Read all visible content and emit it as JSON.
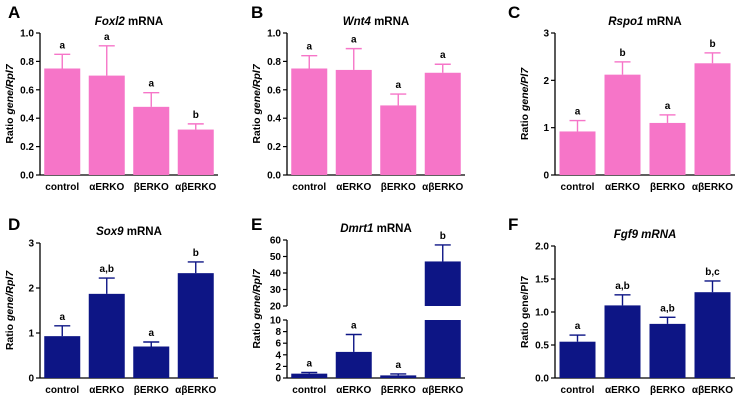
{
  "colors": {
    "pink": "#f675c8",
    "navy": "#0d1585",
    "axis": "#000000"
  },
  "categories": [
    "control",
    "αERKO",
    "βERKO",
    "αβERKO"
  ],
  "chart_data": [
    {
      "panel": "A",
      "type": "bar",
      "color": "pink",
      "gene": "Foxl2",
      "title_suffix": " mRNA",
      "ylabel_plain": "Ratio ",
      "ylabel_italic": "gene/Rpl7",
      "ylim": [
        0,
        1.0
      ],
      "yticks": [
        "0.0",
        "0.2",
        "0.4",
        "0.6",
        "0.8",
        "1.0"
      ],
      "categories": [
        "control",
        "αERKO",
        "βERKO",
        "αβERKO"
      ],
      "values": [
        0.75,
        0.7,
        0.48,
        0.32
      ],
      "errors": [
        0.1,
        0.21,
        0.1,
        0.04
      ],
      "sig_labels": [
        "a",
        "a",
        "a",
        "b"
      ]
    },
    {
      "panel": "B",
      "type": "bar",
      "color": "pink",
      "gene": "Wnt4",
      "title_suffix": " mRNA",
      "ylabel_plain": "Ratio ",
      "ylabel_italic": "gene/Rpl7",
      "ylim": [
        0,
        1.0
      ],
      "yticks": [
        "0.0",
        "0.2",
        "0.4",
        "0.6",
        "0.8",
        "1.0"
      ],
      "categories": [
        "control",
        "αERKO",
        "βERKO",
        "αβERKO"
      ],
      "values": [
        0.75,
        0.74,
        0.49,
        0.72
      ],
      "errors": [
        0.09,
        0.15,
        0.08,
        0.06
      ],
      "sig_labels": [
        "a",
        "a",
        "a",
        "a"
      ]
    },
    {
      "panel": "C",
      "type": "bar",
      "color": "pink",
      "gene": "Rspo1",
      "title_suffix": " mRNA",
      "ylabel_plain": "Ratio  ",
      "ylabel_italic": "gene/Pl7",
      "ylim": [
        0,
        3
      ],
      "yticks": [
        "0",
        "1",
        "2",
        "3"
      ],
      "categories": [
        "control",
        "αERKO",
        "βERKO",
        "αβERKO"
      ],
      "values": [
        0.92,
        2.12,
        1.1,
        2.36
      ],
      "errors": [
        0.23,
        0.27,
        0.17,
        0.22
      ],
      "sig_labels": [
        "a",
        "b",
        "a",
        "b"
      ]
    },
    {
      "panel": "D",
      "type": "bar",
      "color": "navy",
      "gene": "Sox9",
      "title_suffix": " mRNA",
      "ylabel_plain": "Ratio ",
      "ylabel_italic": "gene/Rpl7",
      "ylim": [
        0,
        3
      ],
      "yticks": [
        "0",
        "1",
        "2",
        "3"
      ],
      "categories": [
        "control",
        "αERKO",
        "βERKO",
        "αβERKO"
      ],
      "values": [
        0.93,
        1.87,
        0.7,
        2.33
      ],
      "errors": [
        0.23,
        0.35,
        0.1,
        0.25
      ],
      "sig_labels": [
        "a",
        "a,b",
        "a",
        "b"
      ]
    },
    {
      "panel": "E",
      "type": "bar",
      "color": "navy",
      "broken_axis": true,
      "gene": "Dmrt1",
      "title_suffix": " mRNA",
      "ylabel_plain": "Ratio ",
      "ylabel_italic": "gene/Rpl7",
      "ylim": [
        0,
        60
      ],
      "lower_range": [
        0,
        10
      ],
      "upper_range": [
        20,
        60
      ],
      "yticks_lower": [
        "0",
        "2",
        "4",
        "6",
        "8",
        "10"
      ],
      "yticks_upper": [
        "20",
        "30",
        "40",
        "50",
        "60"
      ],
      "categories": [
        "control",
        "αERKO",
        "βERKO",
        "αβERKO"
      ],
      "values": [
        0.75,
        4.5,
        0.45,
        47
      ],
      "errors": [
        0.2,
        3.0,
        0.25,
        10
      ],
      "sig_labels": [
        "a",
        "a",
        "a",
        "b"
      ]
    },
    {
      "panel": "F",
      "type": "bar",
      "color": "navy",
      "gene": "Fgf9 mRNA",
      "title_suffix": "",
      "ylabel_plain": "Ratio  ",
      "ylabel_italic": "gene/Pl7",
      "ylabel_italic_off": true,
      "ylim": [
        0,
        2.0
      ],
      "yticks": [
        "0.0",
        "0.5",
        "1.0",
        "1.5",
        "2.0"
      ],
      "categories": [
        "control",
        "αERKO",
        "βERKO",
        "αβERKO"
      ],
      "values": [
        0.55,
        1.1,
        0.82,
        1.3
      ],
      "errors": [
        0.1,
        0.16,
        0.1,
        0.17
      ],
      "sig_labels": [
        "a",
        "a,b",
        "a,b",
        "b,c"
      ]
    }
  ]
}
